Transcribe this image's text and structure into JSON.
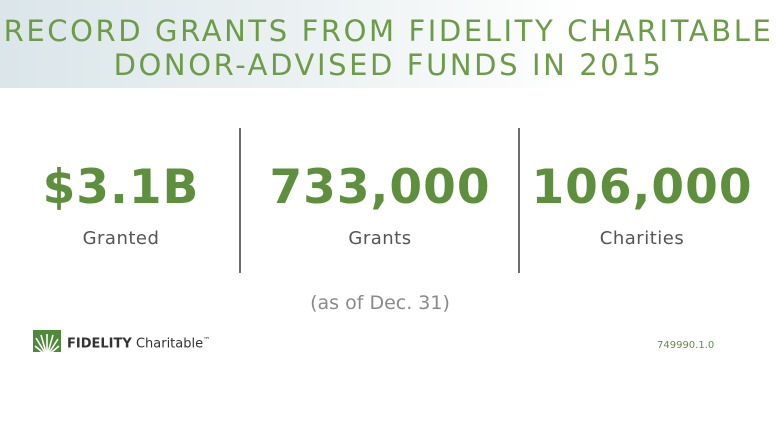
{
  "header": {
    "title_lines": [
      "RECORD GRANTS FROM FIDELITY CHARITABLE",
      "DONOR-ADVISED FUNDS IN 2015"
    ]
  },
  "stats": [
    {
      "value": "$3.1B",
      "label": "Granted"
    },
    {
      "value": "733,000",
      "label": "Grants"
    },
    {
      "value": "106,000",
      "label": "Charities"
    }
  ],
  "note": "(as of Dec. 31)",
  "logo": {
    "brand": "FIDELITY",
    "name": "Charitable",
    "mark": "™"
  },
  "code": "749990.1.0"
}
